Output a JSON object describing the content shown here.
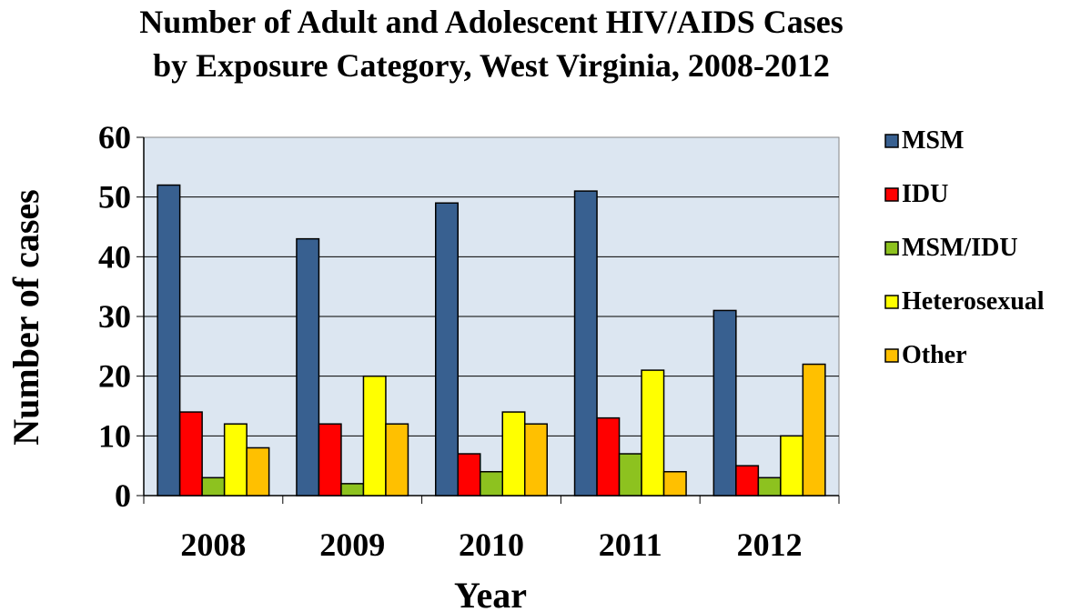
{
  "chart_data": {
    "type": "bar",
    "title_line1": "Number of Adult and Adolescent HIV/AIDS Cases",
    "title_line2": "by Exposure Category, West Virginia, 2008-2012",
    "xlabel": "Year",
    "ylabel": "Number of cases",
    "categories": [
      "2008",
      "2009",
      "2010",
      "2011",
      "2012"
    ],
    "ylim": [
      0,
      60
    ],
    "yticks": [
      "0",
      "10",
      "20",
      "30",
      "40",
      "50",
      "60"
    ],
    "grid": true,
    "legend_position": "right",
    "plot_background": "#dce6f1",
    "series": [
      {
        "name": "MSM",
        "color": "#386090",
        "values": [
          52,
          43,
          49,
          51,
          31
        ]
      },
      {
        "name": "IDU",
        "color": "#ff0000",
        "values": [
          14,
          12,
          7,
          13,
          5
        ]
      },
      {
        "name": "MSM/IDU",
        "color": "#8dc21f",
        "values": [
          3,
          2,
          4,
          7,
          3
        ]
      },
      {
        "name": "Heterosexual",
        "color": "#ffff00",
        "values": [
          12,
          20,
          14,
          21,
          10
        ]
      },
      {
        "name": "Other",
        "color": "#ffc000",
        "values": [
          8,
          12,
          12,
          4,
          22
        ]
      }
    ]
  }
}
